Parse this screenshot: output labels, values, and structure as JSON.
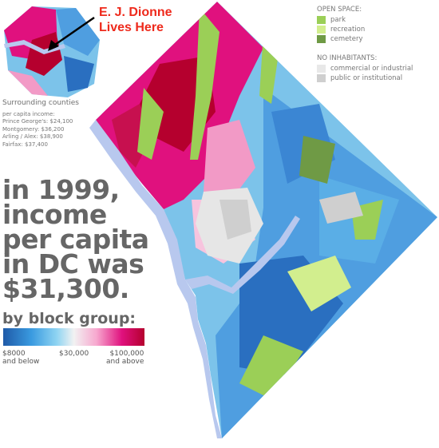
{
  "annotation": {
    "line1": "E. J. Dionne",
    "line2": "Lives Here"
  },
  "surrounding": {
    "title": "Surrounding counties",
    "subtitle": "per capita income:",
    "counties": [
      {
        "name": "Prince George's",
        "value": "$24,100"
      },
      {
        "name": "Montgomery",
        "value": "$36,200"
      },
      {
        "name": "Arling / Alex",
        "value": "$38,900"
      },
      {
        "name": "Fairfax",
        "value": "$37,400"
      }
    ]
  },
  "headline": {
    "line1": "in 1999,",
    "line2": "income",
    "line3": "per capita",
    "line4": "in DC was",
    "line5": "$31,300."
  },
  "block_group_label": "by block group:",
  "scale": {
    "min_label": "$8000",
    "min_sub": "and below",
    "mid_label": "$30,000",
    "max_label": "$100,000",
    "max_sub": "and above",
    "colors": [
      "#1f5aa8",
      "#3a9be0",
      "#8fd4f2",
      "#f2f2f2",
      "#f7a8cf",
      "#e0117e",
      "#b5002e"
    ]
  },
  "open_space": {
    "heading": "OPEN SPACE:",
    "items": [
      {
        "label": "park",
        "color": "#9bcf57"
      },
      {
        "label": "recreation",
        "color": "#d2ee8e"
      },
      {
        "label": "cemetery",
        "color": "#6f9a45"
      }
    ]
  },
  "no_inhabitants": {
    "heading": "NO INHABITANTS:",
    "items": [
      {
        "label": "commercial or industrial",
        "color": "#e8e8e8"
      },
      {
        "label": "public or institutional",
        "color": "#cfcfcf"
      }
    ]
  },
  "colors": {
    "water": "#b8c8ee",
    "annotation": "#ee2a1c"
  }
}
